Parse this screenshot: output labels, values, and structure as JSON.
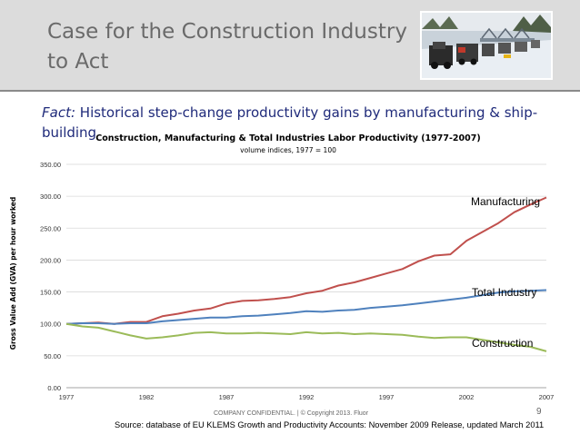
{
  "slide": {
    "title": "Case for the Construction Industry\nto Act",
    "fact_label": "Fact:",
    "fact_text": " Historical step-change productivity gains by manufacturing & ship-building",
    "confidential": "COMPANY CONFIDENTIAL.  |  © Copyright 2013. Fluor",
    "page_number": "9",
    "source": "Source: database of EU KLEMS Growth and Productivity Accounts: November 2009 Release, updated March 2011"
  },
  "chart_data": {
    "type": "line",
    "title": "Construction, Manufacturing & Total Industries Labor Productivity (1977-2007)",
    "subtitle": "volume indices, 1977 = 100",
    "xlabel": "",
    "ylabel": "Gross Value Add (GVA) per hour worked",
    "ylim": [
      0,
      350
    ],
    "y_ticks": [
      "0.00",
      "50.00",
      "100.00",
      "150.00",
      "200.00",
      "250.00",
      "300.00",
      "350.00"
    ],
    "x_ticks": [
      "1977",
      "1982",
      "1987",
      "1992",
      "1997",
      "2002",
      "2007"
    ],
    "x": [
      1977,
      1978,
      1979,
      1980,
      1981,
      1982,
      1983,
      1984,
      1985,
      1986,
      1987,
      1988,
      1989,
      1990,
      1991,
      1992,
      1993,
      1994,
      1995,
      1996,
      1997,
      1998,
      1999,
      2000,
      2001,
      2002,
      2003,
      2004,
      2005,
      2006,
      2007
    ],
    "series": [
      {
        "name": "Manufacturing",
        "color": "#c0504d",
        "values": [
          100,
          101,
          102,
          100,
          103,
          103,
          112,
          116,
          121,
          124,
          132,
          136,
          137,
          139,
          142,
          148,
          152,
          160,
          165,
          172,
          179,
          186,
          198,
          207,
          209,
          230,
          244,
          258,
          275,
          287,
          298
        ]
      },
      {
        "name": "Total Industry",
        "color": "#4f81bd",
        "values": [
          100,
          101,
          101,
          100,
          101,
          101,
          104,
          106,
          108,
          110,
          110,
          112,
          113,
          115,
          117,
          120,
          119,
          121,
          122,
          125,
          127,
          129,
          132,
          135,
          138,
          141,
          145,
          149,
          151,
          152,
          153
        ]
      },
      {
        "name": "Construction",
        "color": "#9bbb59",
        "values": [
          100,
          96,
          94,
          88,
          82,
          77,
          79,
          82,
          86,
          87,
          85,
          85,
          86,
          85,
          84,
          87,
          85,
          86,
          84,
          85,
          84,
          83,
          80,
          78,
          79,
          79,
          75,
          71,
          67,
          64,
          57
        ]
      }
    ]
  }
}
